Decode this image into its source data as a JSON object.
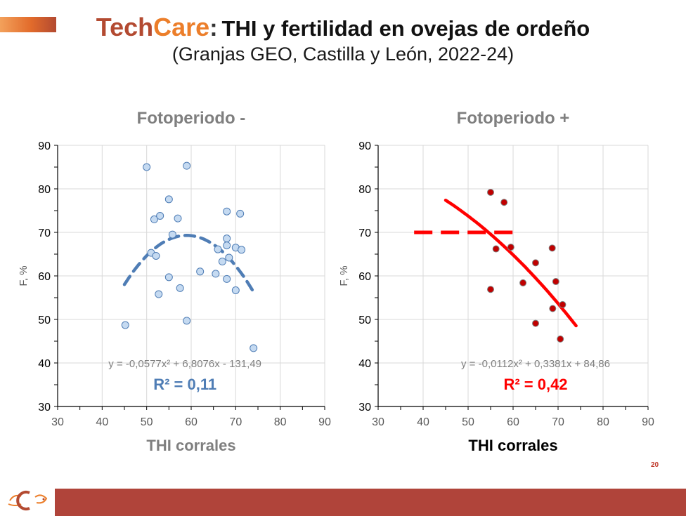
{
  "header": {
    "brand_tech": "Tech",
    "brand_care": "Care",
    "colon": ":",
    "title": "THI y fertilidad en ovejas de ordeño",
    "subtitle": "(Granjas GEO, Castilla y León, 2022-24)"
  },
  "page_number": "20",
  "colors": {
    "brand_dark": "#b34a31",
    "brand_orange": "#ec7e2a",
    "left_series": "#4f7db5",
    "left_point_fill": "#c5daf1",
    "right_series": "#ff0000",
    "right_point_fill": "#c00000",
    "footer_band": "#b0443a"
  },
  "chart_data": [
    {
      "type": "scatter",
      "title": "Fotoperiodo -",
      "xlabel": "THI corrales",
      "ylabel": "F, %",
      "xlim": [
        30,
        90
      ],
      "ylim": [
        30,
        90
      ],
      "x_ticks": [
        30,
        40,
        50,
        60,
        70,
        80,
        90
      ],
      "y_ticks": [
        30,
        40,
        50,
        60,
        70,
        80,
        90
      ],
      "grid": true,
      "points": [
        [
          45.2,
          48.7
        ],
        [
          50,
          85
        ],
        [
          51,
          65.3
        ],
        [
          51.7,
          73
        ],
        [
          52.1,
          64.6
        ],
        [
          52.7,
          55.8
        ],
        [
          53,
          73.8
        ],
        [
          55,
          77.6
        ],
        [
          55,
          59.7
        ],
        [
          55.8,
          69.5
        ],
        [
          57,
          73.2
        ],
        [
          57.5,
          57.2
        ],
        [
          59,
          85.3
        ],
        [
          59,
          49.7
        ],
        [
          62,
          61
        ],
        [
          65.5,
          60.5
        ],
        [
          66,
          66.1
        ],
        [
          67,
          63.3
        ],
        [
          68,
          74.8
        ],
        [
          68,
          68.6
        ],
        [
          68,
          67
        ],
        [
          68,
          59.3
        ],
        [
          68.5,
          64.2
        ],
        [
          70,
          66.5
        ],
        [
          70,
          56.7
        ],
        [
          71,
          74.3
        ],
        [
          71.3,
          66
        ],
        [
          74,
          43.4
        ]
      ],
      "trendline": {
        "kind": "polynomial",
        "a": -0.0577,
        "b": 6.8076,
        "c": -131.49,
        "x_range": [
          45,
          74
        ],
        "style": "dashed"
      },
      "equation": "y = -0,0577x² + 6,8076x - 131,49",
      "r2": "R² = 0,11"
    },
    {
      "type": "scatter",
      "title": "Fotoperiodo +",
      "xlabel": "THI corrales",
      "ylabel": "F, %",
      "xlim": [
        30,
        90
      ],
      "ylim": [
        30,
        90
      ],
      "x_ticks": [
        30,
        40,
        50,
        60,
        70,
        80,
        90
      ],
      "y_ticks": [
        30,
        40,
        50,
        60,
        70,
        80,
        90
      ],
      "grid": true,
      "points": [
        [
          55,
          79.2
        ],
        [
          58,
          76.9
        ],
        [
          56.2,
          66.2
        ],
        [
          59.5,
          66.6
        ],
        [
          55,
          56.9
        ],
        [
          62.2,
          58.4
        ],
        [
          65,
          63
        ],
        [
          68.7,
          66.4
        ],
        [
          69.5,
          58.7
        ],
        [
          65,
          49.1
        ],
        [
          68.8,
          52.5
        ],
        [
          71,
          53.4
        ],
        [
          70.5,
          45.5
        ]
      ],
      "trendline": {
        "kind": "polynomial",
        "a": -0.0112,
        "b": 0.3381,
        "c": 84.86,
        "x_range": [
          45,
          74
        ],
        "style": "solid"
      },
      "reference_line": {
        "y": 70,
        "x_range": [
          38,
          61
        ],
        "style": "dashed"
      },
      "equation": "y = -0,0112x² + 0,3381x + 84,86",
      "r2": "R² = 0,42"
    }
  ]
}
